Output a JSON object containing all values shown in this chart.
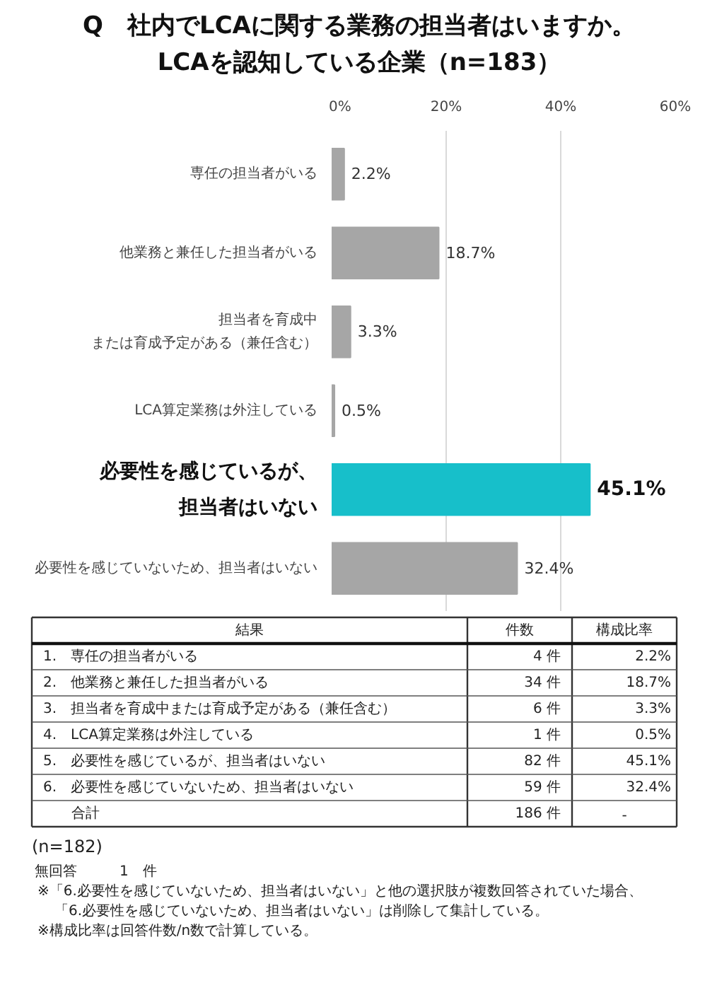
{
  "chart_data": {
    "type": "bar",
    "orientation": "horizontal",
    "title": "Q　社内でLCAに関する業務の担当者はいますか。",
    "subtitle": "LCAを認知している企業（n=183）",
    "categories": [
      "専任の担当者がいる",
      "他業務と兼任した担当者がいる",
      "担当者を育成中または育成予定がある（兼任含む）",
      "LCA算定業務は外注している",
      "必要性を感じているが、担当者はいない",
      "必要性を感じていないため、担当者はいない"
    ],
    "values": [
      2.2,
      18.7,
      3.3,
      0.5,
      45.1,
      32.4
    ],
    "value_labels": [
      "2.2%",
      "18.7%",
      "3.3%",
      "0.5%",
      "45.1%",
      "32.4%"
    ],
    "colors": [
      "#a6a6a6",
      "#a6a6a6",
      "#a6a6a6",
      "#a6a6a6",
      "#17bfca",
      "#a6a6a6"
    ],
    "xlim": [
      0,
      60
    ],
    "xticks": [
      {
        "value": 0,
        "label": "0%"
      },
      {
        "value": 20,
        "label": "20%"
      },
      {
        "value": 40,
        "label": "40%"
      },
      {
        "value": 60,
        "label": "60%"
      }
    ],
    "grid": "x",
    "annotations": [
      "結果",
      "件数",
      "構成比率",
      "1.　専任の担当者がいる",
      "4 件",
      "2.2%",
      "2.　他業務と兼任した担当者がいる",
      "34 件",
      "18.7%",
      "3.　担当者を育成中または育成予定がある（兼任含む）",
      "6 件",
      "3.3%",
      "4.　LCA算定業務は外注している",
      "1 件",
      "0.5%",
      "5.　必要性を感じているが、担当者はいない",
      "82 件",
      "45.1%",
      "6.　必要性を感じていないため、担当者はいない",
      "59 件",
      "32.4%",
      "合計",
      "186 件",
      "-",
      "(n=182)",
      "無回答　　　1　件",
      "※「6.必要性を感じていないため、担当者はいない」と他の選択肢が複数回答されていた場合、",
      "「6.必要性を感じていないため、担当者はいない」は削除して集計している。",
      "※構成比率は回答件数/n数で計算している。"
    ]
  }
}
